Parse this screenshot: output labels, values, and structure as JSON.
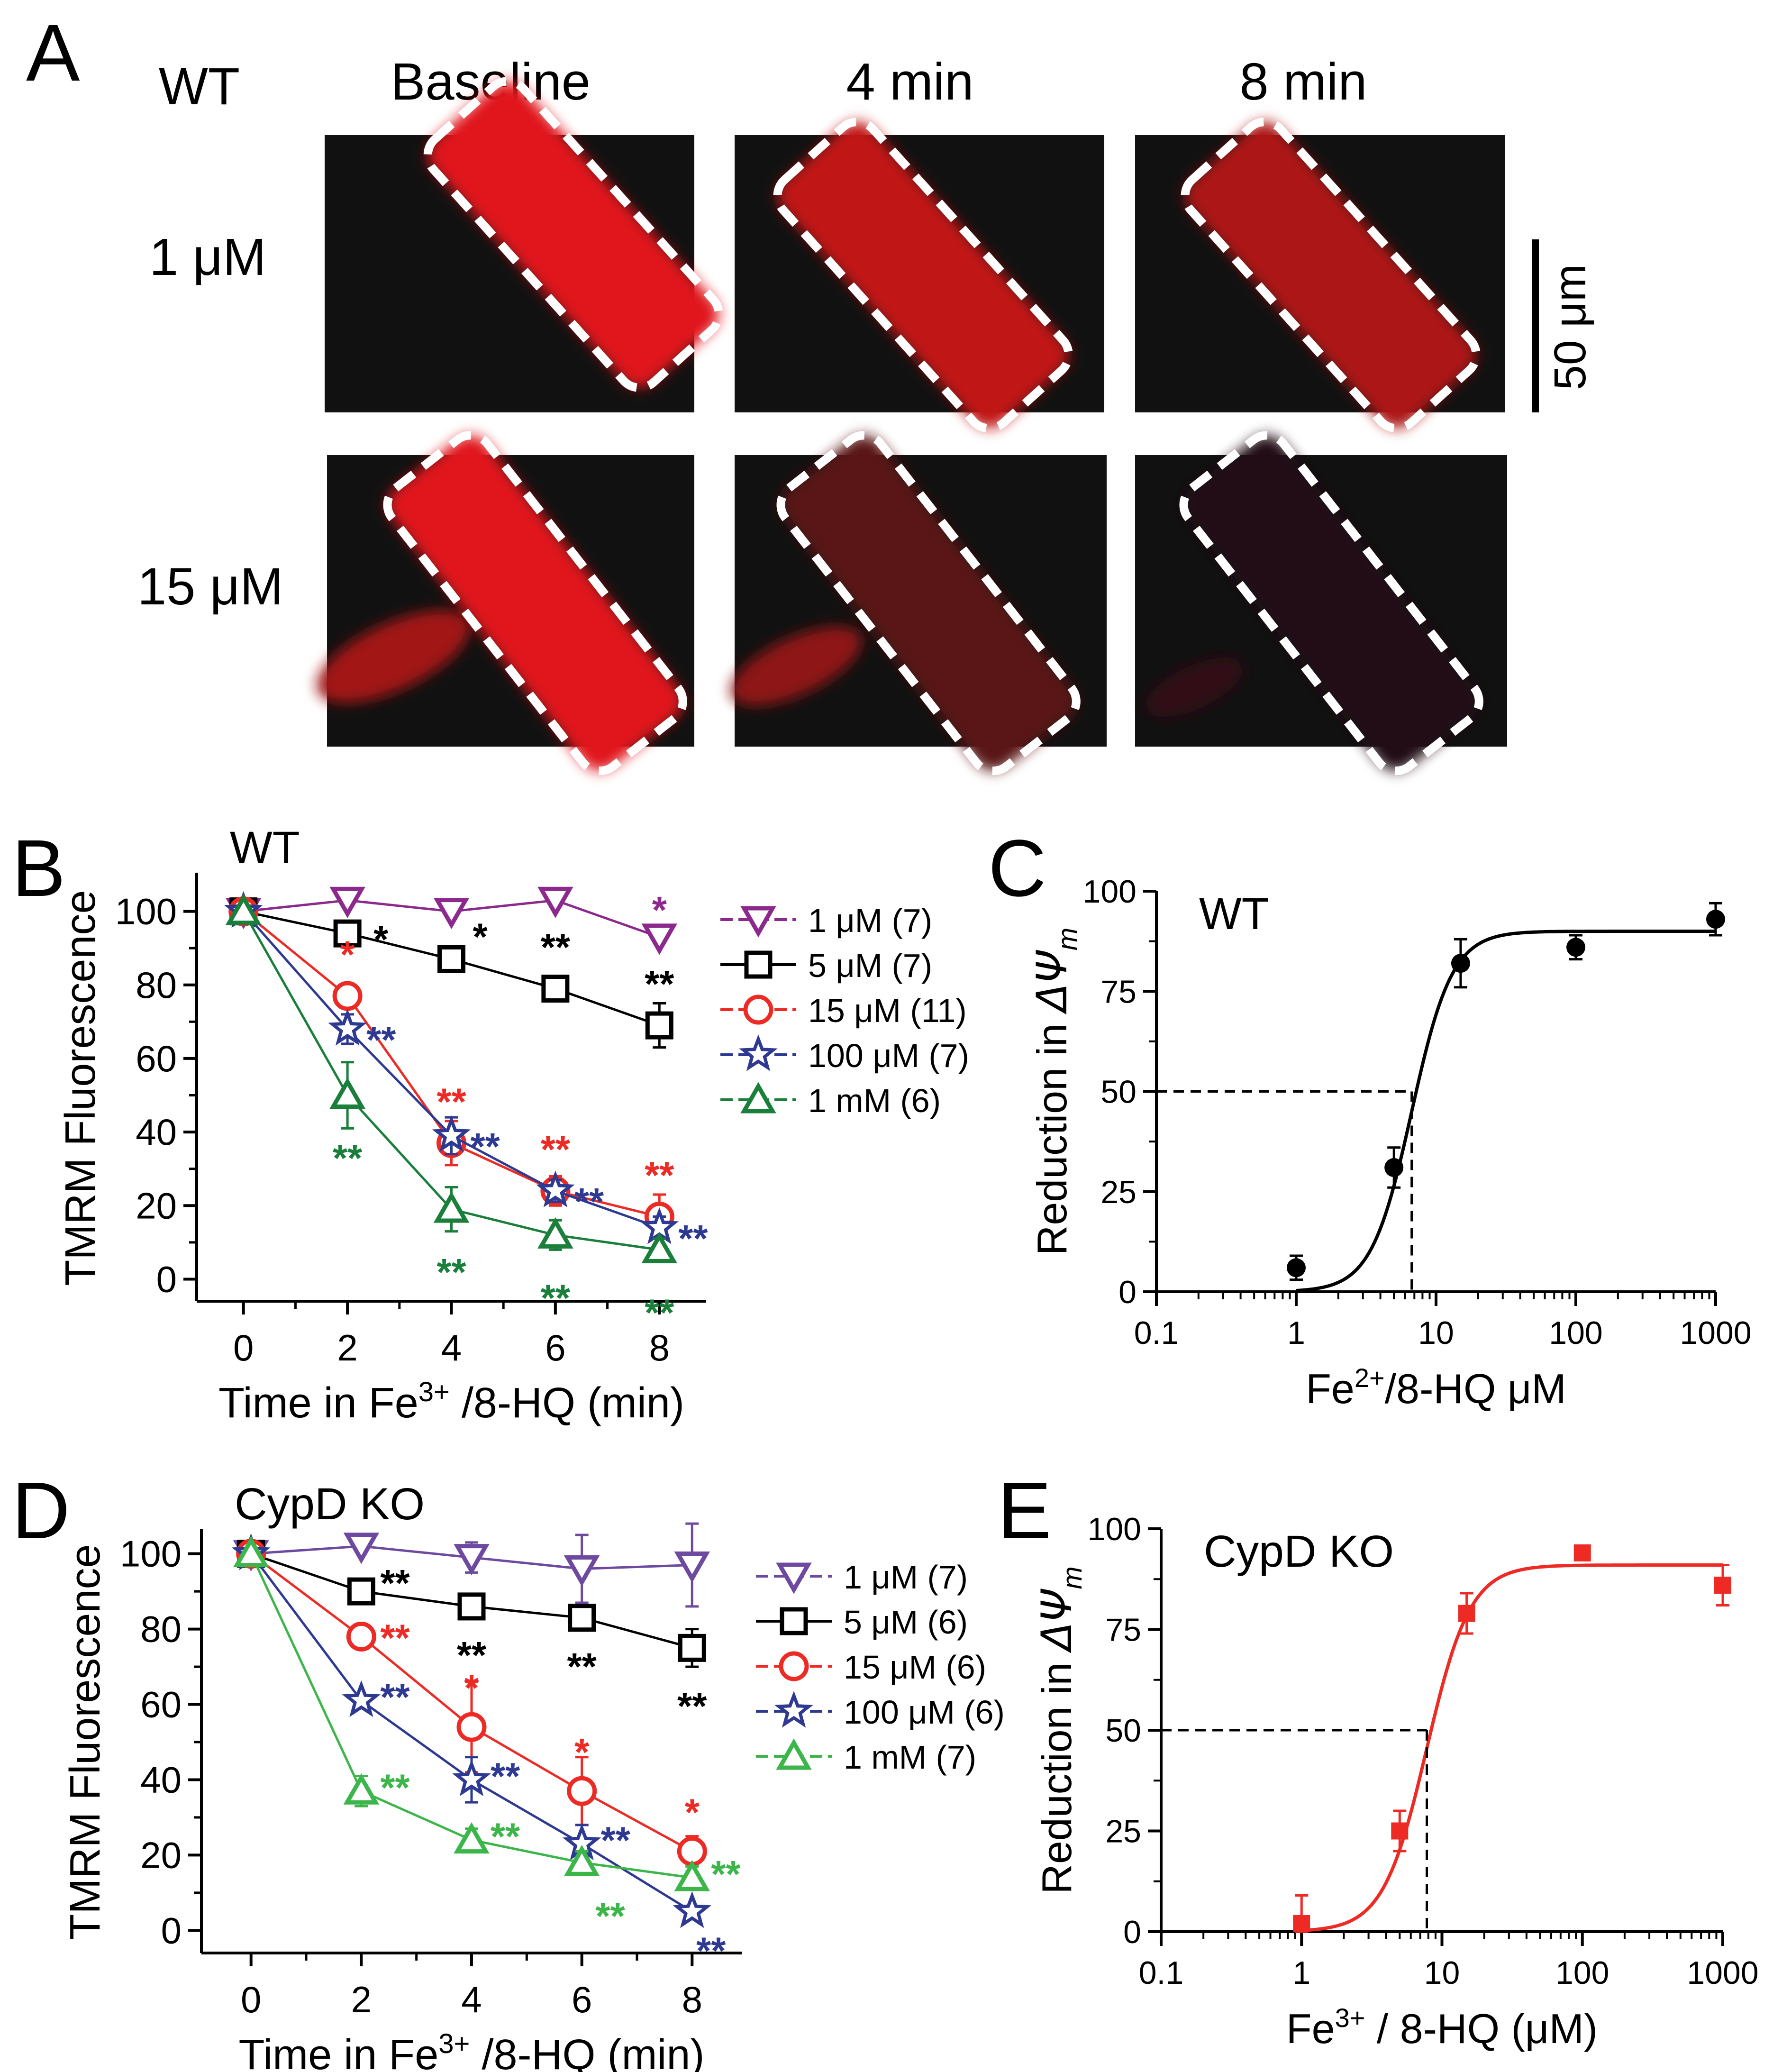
{
  "panel_a": {
    "letter": "A",
    "genotype": "WT",
    "columns": [
      "Baseline",
      "4 min",
      "8 min"
    ],
    "rows": [
      "1 μM",
      "15 μM"
    ],
    "scale_bar_label": "50 μm",
    "fluorescence_color": "#e0141a",
    "relative_intensity": [
      [
        1.0,
        0.85,
        0.75
      ],
      [
        1.0,
        0.35,
        0.08
      ]
    ]
  },
  "chart_data": [
    {
      "panel": "B",
      "type": "line",
      "title": "WT",
      "xlabel": "Time in Fe3+/8-HQ (min)",
      "xlabel_parts": [
        "Time in Fe",
        "3+",
        " /8-HQ (min)"
      ],
      "ylabel": "TMRM Fluorescence",
      "x": [
        0,
        2,
        4,
        6,
        8
      ],
      "xlim": [
        -0.9,
        8.9
      ],
      "ylim": [
        -6,
        110
      ],
      "xticks": [
        "0",
        "2",
        "4",
        "6",
        "8"
      ],
      "yticks": [
        "0",
        "20",
        "40",
        "60",
        "80",
        "100"
      ],
      "series": [
        {
          "name": "1 μM (7)",
          "color": "#8b2a8c",
          "marker": "triangle-down",
          "values": [
            100,
            103,
            100,
            103,
            93
          ],
          "errors": [
            0,
            0,
            0,
            0,
            0
          ],
          "stars": [
            "",
            "",
            "",
            "",
            "*"
          ]
        },
        {
          "name": "5 μM (7)",
          "color": "#000000",
          "marker": "square",
          "values": [
            100,
            94,
            87,
            79,
            69
          ],
          "errors": [
            0,
            0,
            0,
            3,
            6
          ],
          "stars": [
            "",
            "*",
            "*",
            "**",
            "**"
          ]
        },
        {
          "name": "15 μM (11)",
          "color": "#ee2a24",
          "marker": "circle",
          "values": [
            100,
            77,
            37,
            24,
            17
          ],
          "errors": [
            0,
            0,
            6,
            4,
            6
          ],
          "stars": [
            "",
            "*",
            "**",
            "**",
            "**"
          ]
        },
        {
          "name": "100 μM (7)",
          "color": "#2e3a92",
          "marker": "star",
          "values": [
            100,
            68,
            39,
            24,
            14
          ],
          "errors": [
            0,
            4,
            5,
            3,
            3
          ],
          "stars": [
            "",
            "**",
            "**",
            "**",
            "**"
          ]
        },
        {
          "name": "1 mM (6)",
          "color": "#1a7f3a",
          "marker": "triangle-up",
          "values": [
            100,
            50,
            19,
            12,
            8
          ],
          "errors": [
            0,
            9,
            6,
            4,
            3
          ],
          "stars": [
            "",
            "**",
            "**",
            "**",
            "**"
          ]
        }
      ]
    },
    {
      "panel": "C",
      "type": "scatter",
      "title": "WT",
      "xlabel": "Fe2+/8-HQ μM",
      "xlabel_parts": [
        "Fe",
        "2+",
        "/8-HQ μM"
      ],
      "ylabel": "Reduction in ΔΨm",
      "ylabel_parts": [
        "Reduction in ",
        "ΔΨ",
        "m"
      ],
      "xscale": "log",
      "xlim": [
        0.1,
        1000
      ],
      "ylim": [
        0,
        100
      ],
      "xticks": [
        "0.1",
        "1",
        "10",
        "100",
        "1000"
      ],
      "yticks": [
        "0",
        "25",
        "50",
        "75",
        "100"
      ],
      "x": [
        1,
        5,
        15,
        100,
        1000
      ],
      "values": [
        6,
        31,
        82,
        86,
        93
      ],
      "errors": [
        3,
        5,
        6,
        3,
        4
      ],
      "marker": "circle-filled",
      "color": "#000000",
      "fit": {
        "top": 90,
        "ec50": 6.7,
        "hill": 3
      },
      "half_max_line": {
        "y": 50,
        "x": 6.7
      }
    },
    {
      "panel": "D",
      "type": "line",
      "title": "CypD KO",
      "xlabel": "Time in Fe3+/8-HQ (min)",
      "xlabel_parts": [
        "Time in Fe",
        "3+",
        " /8-HQ (min)"
      ],
      "ylabel": "TMRM Fluorescence",
      "x": [
        0,
        2,
        4,
        6,
        8
      ],
      "xlim": [
        -0.9,
        8.9
      ],
      "ylim": [
        -6,
        106
      ],
      "xticks": [
        "0",
        "2",
        "4",
        "6",
        "8"
      ],
      "yticks": [
        "0",
        "20",
        "40",
        "60",
        "80",
        "100"
      ],
      "series": [
        {
          "name": "1 μM (7)",
          "color": "#6d4aa0",
          "marker": "triangle-down",
          "values": [
            100,
            102,
            99,
            96,
            97
          ],
          "errors": [
            0,
            0,
            4,
            9,
            11
          ],
          "stars": [
            "",
            "",
            "",
            "",
            ""
          ]
        },
        {
          "name": "5 μM (6)",
          "color": "#000000",
          "marker": "square",
          "values": [
            100,
            90,
            86,
            83,
            75
          ],
          "errors": [
            0,
            0,
            0,
            0,
            5
          ],
          "stars": [
            "",
            "**",
            "**",
            "**",
            "**"
          ]
        },
        {
          "name": "15 μM (6)",
          "color": "#ee2a24",
          "marker": "circle",
          "values": [
            100,
            78,
            54,
            37,
            21
          ],
          "errors": [
            0,
            0,
            12,
            9,
            4
          ],
          "stars": [
            "",
            "**",
            "*",
            "*",
            "*"
          ]
        },
        {
          "name": "100 μM (6)",
          "color": "#2e3a92",
          "marker": "star",
          "values": [
            100,
            61,
            40,
            23,
            5
          ],
          "errors": [
            0,
            0,
            6,
            5,
            0
          ],
          "stars": [
            "",
            "**",
            "**",
            "**",
            "**"
          ]
        },
        {
          "name": "1 mM (7)",
          "color": "#3cb64a",
          "marker": "triangle-up",
          "values": [
            100,
            37,
            24,
            18,
            14
          ],
          "errors": [
            0,
            4,
            3,
            3,
            3
          ],
          "stars": [
            "",
            "**",
            "**",
            "**",
            "**"
          ]
        }
      ]
    },
    {
      "panel": "E",
      "type": "scatter",
      "title": "CypD KO",
      "xlabel": "Fe3+ / 8-HQ (μM)",
      "xlabel_parts": [
        "Fe",
        "3+",
        " / 8-HQ (μM)"
      ],
      "ylabel": "Reduction in ΔΨm",
      "ylabel_parts": [
        "Reduction in ",
        "ΔΨ",
        "m"
      ],
      "xscale": "log",
      "xlim": [
        0.1,
        1000
      ],
      "ylim": [
        0,
        100
      ],
      "xticks": [
        "0.1",
        "1",
        "10",
        "100",
        "1000"
      ],
      "yticks": [
        "0",
        "25",
        "50",
        "75",
        "100"
      ],
      "x": [
        1,
        5,
        15,
        100,
        1000
      ],
      "values": [
        2,
        25,
        79,
        94,
        86
      ],
      "errors": [
        7,
        5,
        5,
        1,
        5
      ],
      "marker": "square-filled",
      "color": "#ee2a24",
      "fit": {
        "top": 91,
        "ec50": 7.8,
        "hill": 2.8
      },
      "half_max_line": {
        "y": 50,
        "x": 7.8
      }
    }
  ]
}
